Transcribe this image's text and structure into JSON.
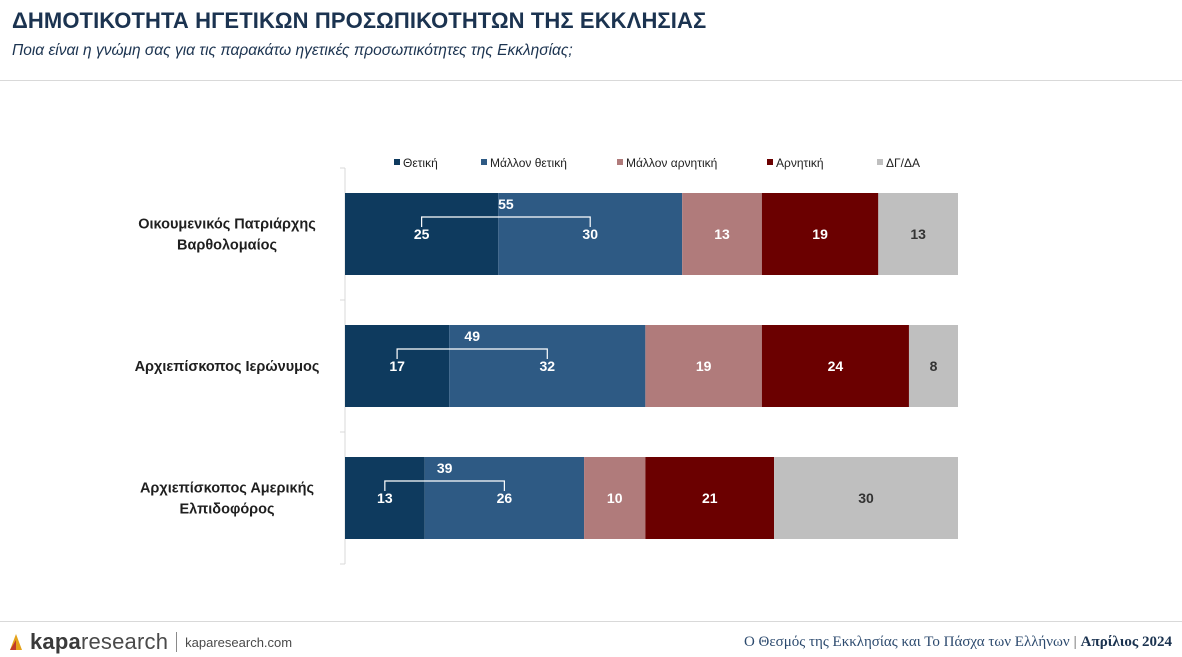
{
  "header": {
    "title": "ΔΗΜΟΤΙΚΟΤΗΤΑ ΗΓΕΤΙΚΩΝ ΠΡΟΣΩΠΙΚΟΤΗΤΩΝ ΤΗΣ ΕΚΚΛΗΣΙΑΣ",
    "subtitle": "Ποια είναι η γνώμη σας για τις παρακάτω ηγετικές προσωπικότητες της Εκκλησίας;"
  },
  "chart_data": {
    "type": "bar",
    "orientation": "horizontal",
    "stacked": true,
    "categories": [
      [
        "Οικουμενικός Πατριάρχης",
        "Βαρθολομαίος"
      ],
      [
        "Αρχιεπίσκοπος Ιερώνυμος"
      ],
      [
        "Αρχιεπίσκοπος Αμερικής",
        "Ελπιδοφόρος"
      ]
    ],
    "series": [
      {
        "name": "Θετική",
        "color": "#0e3a5e",
        "values": [
          25,
          17,
          13
        ]
      },
      {
        "name": "Μάλλον θετική",
        "color": "#2e5a84",
        "values": [
          30,
          32,
          26
        ]
      },
      {
        "name": "Μάλλον αρνητική",
        "color": "#b07b7b",
        "values": [
          13,
          19,
          10
        ]
      },
      {
        "name": "Αρνητική",
        "color": "#6b0000",
        "values": [
          19,
          24,
          21
        ]
      },
      {
        "name": "ΔΓ/ΔΑ",
        "color": "#bfbfbf",
        "values": [
          13,
          8,
          30
        ]
      }
    ],
    "positive_totals": [
      55,
      49,
      39
    ],
    "legend_position": "top",
    "grid": false,
    "xlim": [
      0,
      100
    ]
  },
  "footer": {
    "logo_bold": "kapa",
    "logo_rest": "research",
    "url": "kaparesearch.com",
    "report": "Ο Θεσμός της Εκκλησίας και Το Πάσχα των Ελλήνων",
    "separator": "|",
    "date": "Απρίλιος 2024"
  }
}
